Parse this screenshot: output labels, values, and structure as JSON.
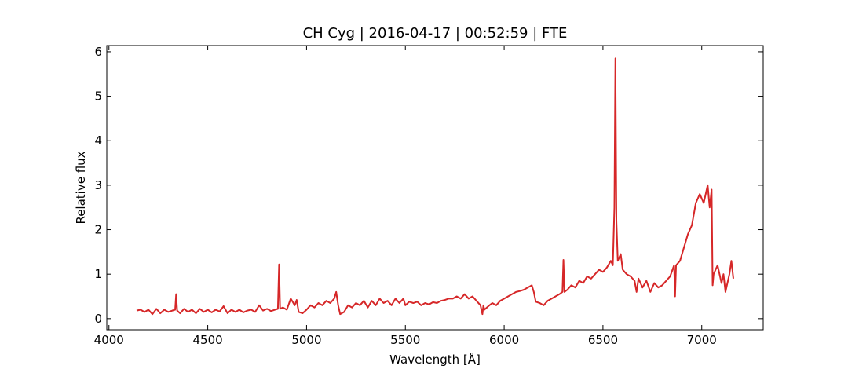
{
  "chart_data": {
    "type": "line",
    "title": "CH Cyg | 2016-04-17 | 00:52:59 | FTE",
    "x_label": "Wavelength [Å]",
    "y_label": "Relative flux",
    "xlim": [
      3989,
      7311
    ],
    "ylim": [
      -0.25,
      6.14
    ],
    "xticks": [
      4000,
      4500,
      5000,
      5500,
      6000,
      6500,
      7000
    ],
    "yticks": [
      0,
      1,
      2,
      3,
      4,
      5,
      6
    ],
    "series": [
      {
        "color": "#d62728",
        "x": [
          4140,
          4160,
          4180,
          4200,
          4220,
          4240,
          4260,
          4280,
          4300,
          4320,
          4335,
          4340,
          4345,
          4360,
          4380,
          4400,
          4420,
          4440,
          4460,
          4480,
          4500,
          4520,
          4540,
          4560,
          4580,
          4600,
          4620,
          4640,
          4660,
          4680,
          4700,
          4720,
          4740,
          4760,
          4780,
          4800,
          4820,
          4840,
          4855,
          4861,
          4866,
          4880,
          4900,
          4920,
          4940,
          4950,
          4960,
          4980,
          5000,
          5020,
          5040,
          5060,
          5080,
          5100,
          5120,
          5140,
          5150,
          5160,
          5170,
          5190,
          5210,
          5230,
          5250,
          5270,
          5290,
          5310,
          5330,
          5350,
          5370,
          5390,
          5410,
          5430,
          5450,
          5470,
          5490,
          5500,
          5520,
          5540,
          5560,
          5580,
          5600,
          5620,
          5640,
          5660,
          5680,
          5700,
          5720,
          5740,
          5760,
          5780,
          5800,
          5820,
          5840,
          5860,
          5880,
          5890,
          5895,
          5900,
          5920,
          5940,
          5960,
          5980,
          6000,
          6020,
          6040,
          6060,
          6080,
          6100,
          6120,
          6140,
          6150,
          6160,
          6180,
          6200,
          6220,
          6240,
          6260,
          6280,
          6295,
          6300,
          6305,
          6320,
          6340,
          6360,
          6380,
          6400,
          6420,
          6440,
          6460,
          6480,
          6500,
          6520,
          6540,
          6550,
          6558,
          6563,
          6568,
          6575,
          6590,
          6600,
          6620,
          6640,
          6660,
          6670,
          6680,
          6700,
          6720,
          6740,
          6760,
          6780,
          6800,
          6820,
          6840,
          6860,
          6865,
          6870,
          6890,
          6910,
          6930,
          6950,
          6970,
          6990,
          7010,
          7030,
          7040,
          7050,
          7055,
          7060,
          7080,
          7100,
          7110,
          7120,
          7140,
          7150,
          7160
        ],
        "values": [
          0.18,
          0.2,
          0.15,
          0.2,
          0.1,
          0.22,
          0.12,
          0.2,
          0.15,
          0.18,
          0.2,
          0.55,
          0.18,
          0.12,
          0.22,
          0.15,
          0.2,
          0.12,
          0.22,
          0.15,
          0.2,
          0.14,
          0.2,
          0.16,
          0.28,
          0.12,
          0.2,
          0.15,
          0.2,
          0.14,
          0.18,
          0.2,
          0.15,
          0.3,
          0.18,
          0.22,
          0.17,
          0.2,
          0.22,
          1.22,
          0.22,
          0.25,
          0.2,
          0.45,
          0.3,
          0.42,
          0.15,
          0.12,
          0.2,
          0.3,
          0.25,
          0.35,
          0.3,
          0.4,
          0.35,
          0.45,
          0.6,
          0.3,
          0.1,
          0.15,
          0.3,
          0.25,
          0.35,
          0.3,
          0.4,
          0.25,
          0.4,
          0.3,
          0.45,
          0.35,
          0.4,
          0.3,
          0.45,
          0.35,
          0.45,
          0.3,
          0.38,
          0.35,
          0.38,
          0.3,
          0.35,
          0.32,
          0.37,
          0.35,
          0.4,
          0.42,
          0.45,
          0.45,
          0.5,
          0.45,
          0.55,
          0.45,
          0.5,
          0.4,
          0.3,
          0.1,
          0.3,
          0.2,
          0.28,
          0.35,
          0.3,
          0.4,
          0.45,
          0.5,
          0.55,
          0.6,
          0.62,
          0.65,
          0.7,
          0.75,
          0.6,
          0.38,
          0.35,
          0.3,
          0.4,
          0.45,
          0.5,
          0.55,
          0.6,
          1.32,
          0.6,
          0.65,
          0.75,
          0.7,
          0.85,
          0.8,
          0.95,
          0.9,
          1.0,
          1.1,
          1.05,
          1.15,
          1.3,
          1.2,
          2.5,
          5.85,
          2.2,
          1.3,
          1.45,
          1.1,
          1.0,
          0.95,
          0.85,
          0.6,
          0.9,
          0.7,
          0.85,
          0.6,
          0.8,
          0.7,
          0.75,
          0.85,
          0.95,
          1.2,
          0.5,
          1.2,
          1.3,
          1.6,
          1.9,
          2.1,
          2.6,
          2.8,
          2.6,
          3.0,
          2.5,
          2.9,
          0.75,
          1.0,
          1.2,
          0.8,
          1.0,
          0.6,
          1.0,
          1.3,
          0.9
        ]
      }
    ]
  }
}
